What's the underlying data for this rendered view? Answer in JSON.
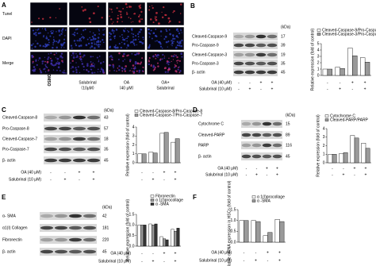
{
  "panel_a": {
    "label": "A",
    "rows": [
      "Tunel",
      "DAPI",
      "Merge"
    ],
    "columns": [
      [
        "DMSO"
      ],
      [
        "Salubrinal",
        "（10μM）"
      ],
      [
        "OA",
        "（40 μM）"
      ],
      [
        "OA+",
        "Salubrinal"
      ]
    ]
  },
  "blots": [
    {
      "label": "B",
      "unit": "(kDa)",
      "bands": [
        {
          "name": "Cleaved-Caspase-9",
          "kda": 17
        },
        {
          "name": "Pro-Caspase-9",
          "kda": 39
        },
        {
          "name": "Cleaved-Caspase-3",
          "kda": 19
        },
        {
          "name": "Pro-Caspase-3",
          "kda": 35
        },
        {
          "name": "β- actin",
          "kda": 45
        }
      ]
    },
    {
      "label": "C",
      "unit": "(kDa)",
      "bands": [
        {
          "name": "Cleaved-Caspase-8",
          "kda": 43
        },
        {
          "name": "Pro-Caspase-8",
          "kda": 57
        },
        {
          "name": "Cleaved-Caspase-7",
          "kda": 18
        },
        {
          "name": "Pro-Caspase-7",
          "kda": 35
        },
        {
          "name": "β- actin",
          "kda": 45
        }
      ]
    },
    {
      "label": "D",
      "unit": "(kDa)",
      "bands": [
        {
          "name": "Cytochrome C",
          "kda": 15
        },
        {
          "name": "Cleaved-PARP",
          "kda": 89
        },
        {
          "name": "PARP",
          "kda": 116
        },
        {
          "name": "β- actin",
          "kda": 45
        }
      ]
    },
    {
      "label": "E",
      "unit": "(kDa)",
      "bands": [
        {
          "name": "α- SMA",
          "kda": 42
        },
        {
          "name": "α1(I) Collagen",
          "kda": 181
        },
        {
          "name": "Fibronectin",
          "kda": 220
        },
        {
          "name": "β- actin",
          "kda": 45
        }
      ]
    }
  ],
  "panel_f": {
    "label": "F"
  },
  "chart_data": [
    {
      "type": "bar",
      "ylabel": "Relative expression (fold of control)",
      "categories": [
        null,
        null,
        null,
        null
      ],
      "ylim": [
        0,
        5
      ],
      "yticks": [
        0,
        1,
        2,
        3,
        4,
        5
      ],
      "series": [
        {
          "name": "Cleaved-Caspase-9/Pro-Caspase-9",
          "color": "#ffffff",
          "values": [
            1,
            1.3,
            4.3,
            2.8
          ]
        },
        {
          "name": "Cleaved-Caspase-3/Pro-Caspase-3",
          "color": "#9a9a9a",
          "values": [
            1,
            1.1,
            3.1,
            2.1
          ]
        }
      ],
      "conditions": [
        {
          "label": "OA (40 μM)",
          "signs": [
            "-",
            "-",
            "+",
            "+"
          ]
        },
        {
          "label": "Salubrinal (10 μM)",
          "signs": [
            "-",
            "+",
            "-",
            "+"
          ]
        }
      ]
    },
    {
      "type": "bar",
      "ylabel": "Relative expression (fold of control)",
      "categories": [
        null,
        null,
        null,
        null
      ],
      "ylim": [
        0,
        4
      ],
      "yticks": [
        0,
        1,
        2,
        3,
        4
      ],
      "series": [
        {
          "name": "Cleaved-Caspase-8/Pro-Caspase-8",
          "color": "#ffffff",
          "values": [
            1,
            1.2,
            3.3,
            2.3
          ]
        },
        {
          "name": "Cleaved-Caspase-7/Pro-Caspase-7",
          "color": "#9a9a9a",
          "values": [
            1,
            1.1,
            3.4,
            2.7
          ]
        }
      ],
      "conditions": [
        {
          "label": "OA (40 μM)",
          "signs": [
            "-",
            "-",
            "+",
            "+"
          ]
        },
        {
          "label": "Salubrinal (10 μM)",
          "signs": [
            "-",
            "+",
            "-",
            "+"
          ]
        }
      ]
    },
    {
      "type": "bar",
      "ylabel": "Relative expression (fold of control)",
      "categories": [
        null,
        null,
        null,
        null
      ],
      "ylim": [
        0,
        4
      ],
      "yticks": [
        0,
        1,
        2,
        3,
        4
      ],
      "series": [
        {
          "name": "Cytochrome C",
          "color": "#ffffff",
          "values": [
            1,
            1.1,
            3.2,
            2.3
          ]
        },
        {
          "name": "Cleaved-PARP/PARP",
          "color": "#9a9a9a",
          "values": [
            1,
            1.2,
            2.9,
            1.7
          ]
        }
      ],
      "conditions": [
        {
          "label": "OA (40 μM)",
          "signs": [
            "-",
            "-",
            "+",
            "+"
          ]
        },
        {
          "label": "Salubrinal (10 μM)",
          "signs": [
            "-",
            "+",
            "-",
            "+"
          ]
        }
      ]
    },
    {
      "type": "bar",
      "ylabel": "Relative expression (fold of control)",
      "categories": [
        null,
        null,
        null,
        null
      ],
      "ylim": [
        0,
        1.5
      ],
      "yticks": [
        {
          "value": 0,
          "label": "0.0"
        },
        {
          "value": 0.5,
          "label": "0.5"
        },
        {
          "value": 1,
          "label": "1.0"
        },
        {
          "value": 1.5,
          "label": "1.5"
        }
      ],
      "series": [
        {
          "name": "Fibronectin",
          "color": "#ffffff",
          "values": [
            1,
            1.05,
            0.45,
            0.8
          ]
        },
        {
          "name": "α 1(I)procollage",
          "color": "#9a9a9a",
          "values": [
            1,
            1,
            0.35,
            0.7
          ]
        },
        {
          "name": "α -SMA",
          "color": "#333333",
          "values": [
            1,
            1.05,
            0.3,
            0.85
          ]
        }
      ],
      "conditions": [
        {
          "label": "OA (40 μM)",
          "signs": [
            "-",
            "-",
            "+",
            "+"
          ]
        },
        {
          "label": "Salubrinal (10 μM)",
          "signs": [
            "-",
            "+",
            "-",
            "+"
          ]
        }
      ]
    },
    {
      "type": "bar",
      "ylabel": "Relative mRNA expression in HSCs (fold of control)",
      "categories": [
        null,
        null,
        null,
        null
      ],
      "ylim": [
        0,
        1.5
      ],
      "yticks": [
        {
          "value": 0,
          "label": "0.0"
        },
        {
          "value": 0.5,
          "label": "0.5"
        },
        {
          "value": 1,
          "label": "1.0"
        },
        {
          "value": 1.5,
          "label": "1.5"
        }
      ],
      "series": [
        {
          "name": "α 1(I)procollage",
          "color": "#ffffff",
          "values": [
            1,
            1,
            0.3,
            1.05
          ]
        },
        {
          "name": "α -SMA",
          "color": "#9a9a9a",
          "values": [
            1,
            0.95,
            0.45,
            0.95
          ]
        }
      ],
      "conditions": [
        {
          "label": "OA (40 μM)",
          "signs": [
            "-",
            "-",
            "+",
            "+"
          ]
        },
        {
          "label": "Salubrinal (10 μM)",
          "signs": [
            "-",
            "+",
            "-",
            "+"
          ]
        }
      ]
    }
  ]
}
